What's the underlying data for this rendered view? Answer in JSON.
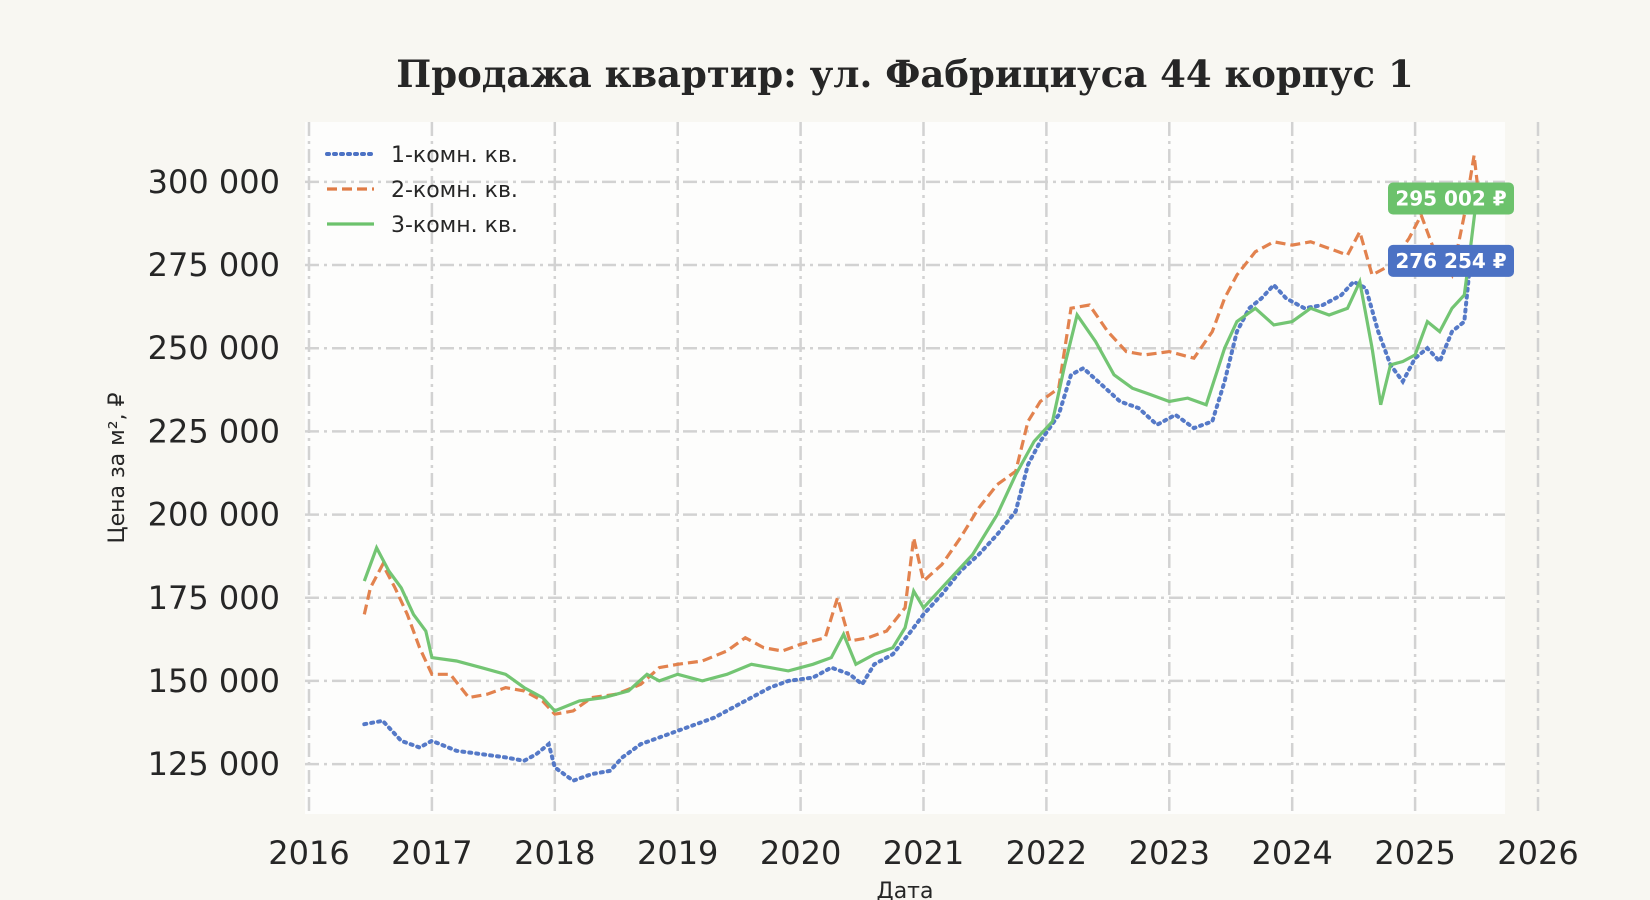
{
  "chart_data": {
    "type": "line",
    "title": "Продажа квартир: ул. Фабрициуса 44 корпус 1",
    "xlabel": "Дата",
    "ylabel": "Цена за м², ₽",
    "xlim": [
      2016.0,
      2026.0
    ],
    "ylim": [
      110000,
      318000
    ],
    "x_ticks": [
      "2016",
      "2017",
      "2018",
      "2019",
      "2020",
      "2021",
      "2022",
      "2023",
      "2024",
      "2025",
      "2026"
    ],
    "y_ticks": [
      "125 000",
      "150 000",
      "175 000",
      "200 000",
      "225 000",
      "250 000",
      "275 000",
      "300 000"
    ],
    "y_tick_values": [
      125000,
      150000,
      175000,
      200000,
      225000,
      250000,
      275000,
      300000
    ],
    "grid": true,
    "legend_position": "top-left",
    "series": [
      {
        "name": "1-комн. кв.",
        "color": "#4c72c4",
        "style": "dotted",
        "points": [
          [
            2016.45,
            137000
          ],
          [
            2016.6,
            138000
          ],
          [
            2016.75,
            132000
          ],
          [
            2016.9,
            130000
          ],
          [
            2017.0,
            132000
          ],
          [
            2017.2,
            129000
          ],
          [
            2017.4,
            128000
          ],
          [
            2017.6,
            127000
          ],
          [
            2017.75,
            126000
          ],
          [
            2017.85,
            128000
          ],
          [
            2017.95,
            131000
          ],
          [
            2018.0,
            124000
          ],
          [
            2018.15,
            120000
          ],
          [
            2018.3,
            122000
          ],
          [
            2018.45,
            123000
          ],
          [
            2018.55,
            127000
          ],
          [
            2018.7,
            131000
          ],
          [
            2018.85,
            133000
          ],
          [
            2019.0,
            135000
          ],
          [
            2019.15,
            137000
          ],
          [
            2019.3,
            139000
          ],
          [
            2019.45,
            142000
          ],
          [
            2019.6,
            145000
          ],
          [
            2019.75,
            148000
          ],
          [
            2019.9,
            150000
          ],
          [
            2020.1,
            151000
          ],
          [
            2020.25,
            154000
          ],
          [
            2020.4,
            152000
          ],
          [
            2020.5,
            149000
          ],
          [
            2020.6,
            155000
          ],
          [
            2020.75,
            158000
          ],
          [
            2020.9,
            165000
          ],
          [
            2021.0,
            170000
          ],
          [
            2021.15,
            176000
          ],
          [
            2021.3,
            183000
          ],
          [
            2021.45,
            188000
          ],
          [
            2021.6,
            194000
          ],
          [
            2021.75,
            201000
          ],
          [
            2021.85,
            215000
          ],
          [
            2021.95,
            222000
          ],
          [
            2022.1,
            230000
          ],
          [
            2022.2,
            242000
          ],
          [
            2022.3,
            244000
          ],
          [
            2022.45,
            239000
          ],
          [
            2022.6,
            234000
          ],
          [
            2022.75,
            232000
          ],
          [
            2022.9,
            227000
          ],
          [
            2023.05,
            230000
          ],
          [
            2023.2,
            226000
          ],
          [
            2023.35,
            228000
          ],
          [
            2023.45,
            240000
          ],
          [
            2023.55,
            255000
          ],
          [
            2023.65,
            262000
          ],
          [
            2023.75,
            265000
          ],
          [
            2023.85,
            269000
          ],
          [
            2023.95,
            265000
          ],
          [
            2024.1,
            262000
          ],
          [
            2024.25,
            263000
          ],
          [
            2024.4,
            266000
          ],
          [
            2024.5,
            270000
          ],
          [
            2024.6,
            268000
          ],
          [
            2024.7,
            255000
          ],
          [
            2024.8,
            245000
          ],
          [
            2024.9,
            240000
          ],
          [
            2025.0,
            247000
          ],
          [
            2025.1,
            250000
          ],
          [
            2025.2,
            246000
          ],
          [
            2025.3,
            255000
          ],
          [
            2025.4,
            258000
          ],
          [
            2025.45,
            276254
          ]
        ]
      },
      {
        "name": "2-комн. кв.",
        "color": "#e07b45",
        "style": "dashed",
        "points": [
          [
            2016.45,
            170000
          ],
          [
            2016.5,
            178000
          ],
          [
            2016.6,
            185000
          ],
          [
            2016.7,
            178000
          ],
          [
            2016.8,
            170000
          ],
          [
            2016.9,
            160000
          ],
          [
            2017.0,
            152000
          ],
          [
            2017.15,
            152000
          ],
          [
            2017.3,
            145000
          ],
          [
            2017.45,
            146000
          ],
          [
            2017.6,
            148000
          ],
          [
            2017.75,
            147000
          ],
          [
            2017.9,
            144000
          ],
          [
            2018.0,
            140000
          ],
          [
            2018.15,
            141000
          ],
          [
            2018.3,
            145000
          ],
          [
            2018.5,
            146000
          ],
          [
            2018.7,
            149000
          ],
          [
            2018.85,
            154000
          ],
          [
            2019.0,
            155000
          ],
          [
            2019.2,
            156000
          ],
          [
            2019.4,
            159000
          ],
          [
            2019.55,
            163000
          ],
          [
            2019.7,
            160000
          ],
          [
            2019.85,
            159000
          ],
          [
            2020.0,
            161000
          ],
          [
            2020.2,
            163000
          ],
          [
            2020.3,
            175000
          ],
          [
            2020.4,
            162000
          ],
          [
            2020.55,
            163000
          ],
          [
            2020.7,
            165000
          ],
          [
            2020.85,
            172000
          ],
          [
            2020.92,
            193000
          ],
          [
            2021.0,
            180000
          ],
          [
            2021.15,
            185000
          ],
          [
            2021.3,
            193000
          ],
          [
            2021.45,
            202000
          ],
          [
            2021.6,
            209000
          ],
          [
            2021.75,
            213000
          ],
          [
            2021.85,
            228000
          ],
          [
            2021.95,
            234000
          ],
          [
            2022.1,
            238000
          ],
          [
            2022.2,
            262000
          ],
          [
            2022.35,
            263000
          ],
          [
            2022.5,
            255000
          ],
          [
            2022.65,
            249000
          ],
          [
            2022.8,
            248000
          ],
          [
            2023.0,
            249000
          ],
          [
            2023.2,
            247000
          ],
          [
            2023.35,
            255000
          ],
          [
            2023.45,
            265000
          ],
          [
            2023.55,
            272000
          ],
          [
            2023.7,
            279000
          ],
          [
            2023.85,
            282000
          ],
          [
            2024.0,
            281000
          ],
          [
            2024.15,
            282000
          ],
          [
            2024.3,
            280000
          ],
          [
            2024.45,
            278000
          ],
          [
            2024.55,
            285000
          ],
          [
            2024.65,
            272000
          ],
          [
            2024.8,
            275000
          ],
          [
            2024.95,
            283000
          ],
          [
            2025.05,
            290000
          ],
          [
            2025.15,
            280000
          ],
          [
            2025.3,
            272000
          ],
          [
            2025.4,
            290000
          ],
          [
            2025.48,
            308000
          ],
          [
            2025.52,
            295000
          ]
        ]
      },
      {
        "name": "3-комн. кв.",
        "color": "#6cc26c",
        "style": "solid",
        "points": [
          [
            2016.45,
            180000
          ],
          [
            2016.55,
            190000
          ],
          [
            2016.65,
            183000
          ],
          [
            2016.75,
            178000
          ],
          [
            2016.85,
            170000
          ],
          [
            2016.95,
            165000
          ],
          [
            2017.0,
            157000
          ],
          [
            2017.2,
            156000
          ],
          [
            2017.4,
            154000
          ],
          [
            2017.6,
            152000
          ],
          [
            2017.75,
            148000
          ],
          [
            2017.9,
            145000
          ],
          [
            2018.0,
            141000
          ],
          [
            2018.2,
            144000
          ],
          [
            2018.4,
            145000
          ],
          [
            2018.6,
            147000
          ],
          [
            2018.75,
            152000
          ],
          [
            2018.85,
            150000
          ],
          [
            2019.0,
            152000
          ],
          [
            2019.2,
            150000
          ],
          [
            2019.4,
            152000
          ],
          [
            2019.6,
            155000
          ],
          [
            2019.75,
            154000
          ],
          [
            2019.9,
            153000
          ],
          [
            2020.1,
            155000
          ],
          [
            2020.25,
            157000
          ],
          [
            2020.35,
            164000
          ],
          [
            2020.45,
            155000
          ],
          [
            2020.6,
            158000
          ],
          [
            2020.75,
            160000
          ],
          [
            2020.85,
            166000
          ],
          [
            2020.92,
            177000
          ],
          [
            2021.0,
            172000
          ],
          [
            2021.2,
            180000
          ],
          [
            2021.4,
            188000
          ],
          [
            2021.6,
            200000
          ],
          [
            2021.75,
            212000
          ],
          [
            2021.9,
            222000
          ],
          [
            2022.05,
            228000
          ],
          [
            2022.15,
            245000
          ],
          [
            2022.25,
            260000
          ],
          [
            2022.4,
            252000
          ],
          [
            2022.55,
            242000
          ],
          [
            2022.7,
            238000
          ],
          [
            2022.85,
            236000
          ],
          [
            2023.0,
            234000
          ],
          [
            2023.15,
            235000
          ],
          [
            2023.3,
            233000
          ],
          [
            2023.45,
            250000
          ],
          [
            2023.55,
            258000
          ],
          [
            2023.7,
            262000
          ],
          [
            2023.85,
            257000
          ],
          [
            2024.0,
            258000
          ],
          [
            2024.15,
            262000
          ],
          [
            2024.3,
            260000
          ],
          [
            2024.45,
            262000
          ],
          [
            2024.55,
            270000
          ],
          [
            2024.65,
            250000
          ],
          [
            2024.72,
            233000
          ],
          [
            2024.8,
            245000
          ],
          [
            2024.9,
            246000
          ],
          [
            2025.0,
            248000
          ],
          [
            2025.1,
            258000
          ],
          [
            2025.2,
            255000
          ],
          [
            2025.3,
            262000
          ],
          [
            2025.4,
            266000
          ],
          [
            2025.45,
            280000
          ],
          [
            2025.5,
            295002
          ]
        ]
      }
    ],
    "end_labels": [
      {
        "text": "276 254 ₽",
        "value": 276254,
        "color": "#4c72c4"
      },
      {
        "text": "295 002 ₽",
        "value": 295002,
        "color": "#6cc26c"
      }
    ]
  }
}
